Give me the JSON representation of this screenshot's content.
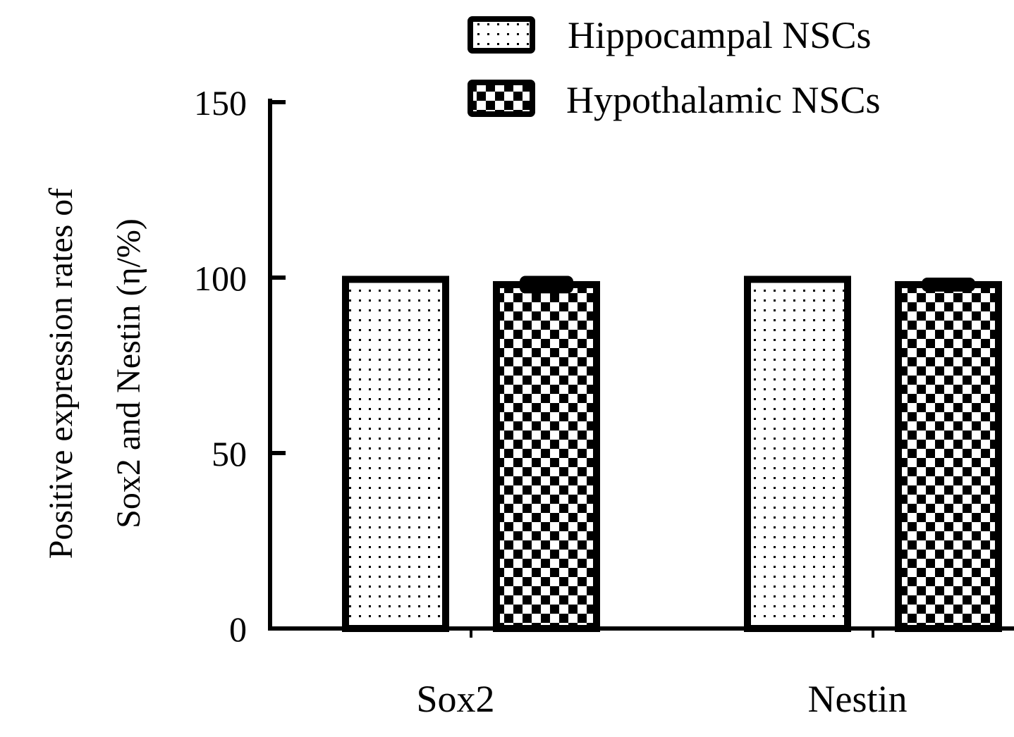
{
  "chart_data": {
    "type": "bar",
    "title": "",
    "xlabel": "",
    "ylabel_lines": [
      "Positive expression rates of",
      "Sox2 and Nestin (η/%)"
    ],
    "categories": [
      "Sox2",
      "Nestin"
    ],
    "series": [
      {
        "name": "Hippocampal NSCs",
        "values": [
          99.5,
          99.5
        ],
        "errors": [
          1.0,
          1.0
        ],
        "pattern": "dots"
      },
      {
        "name": "Hypothalamic NSCs",
        "values": [
          98.0,
          98.0
        ],
        "errors": [
          2.5,
          2.0
        ],
        "pattern": "checker"
      }
    ],
    "ylim": [
      0,
      150
    ],
    "yticks": [
      0,
      50,
      100,
      150
    ],
    "grid": false,
    "legend_position": "top-right"
  }
}
